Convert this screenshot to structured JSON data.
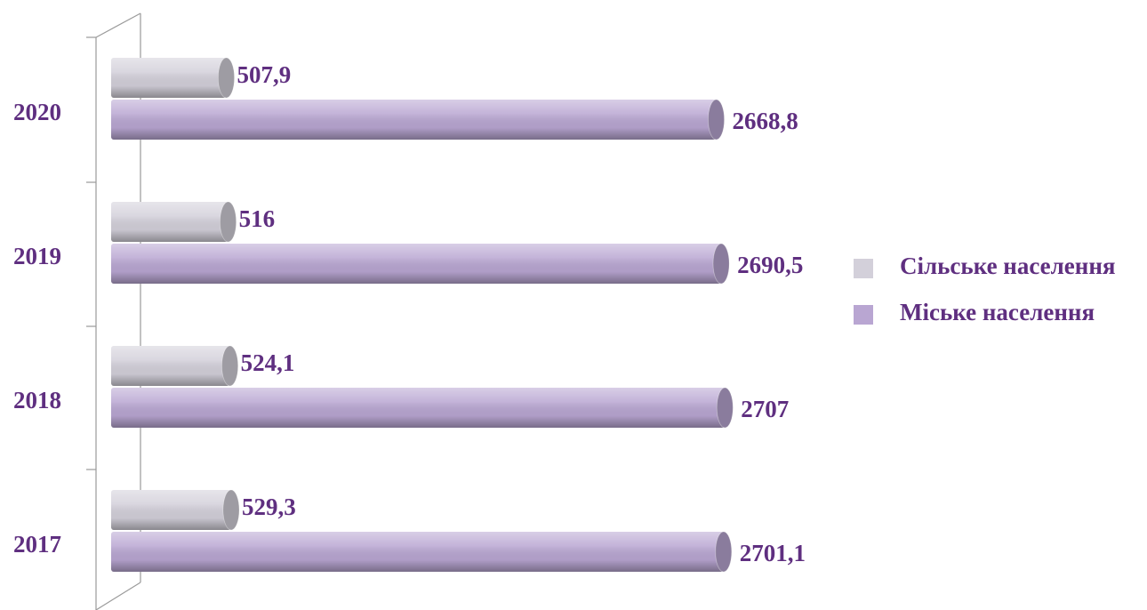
{
  "chart_data": {
    "type": "bar",
    "orientation": "horizontal",
    "categories": [
      "2020",
      "2019",
      "2018",
      "2017"
    ],
    "series": [
      {
        "name": "Сільське населення",
        "color": "#d3d0da",
        "values": [
          507.9,
          516,
          524.1,
          529.3
        ],
        "value_labels": [
          "507,9",
          "516",
          "524,1",
          "529,3"
        ]
      },
      {
        "name": "Міське населення",
        "color": "#b9a6d2",
        "values": [
          2668.8,
          2690.5,
          2707,
          2701.1
        ],
        "value_labels": [
          "2668,8",
          "2690,5",
          "2707",
          "2701,1"
        ]
      }
    ],
    "xlim": [
      0,
      2800
    ],
    "legend": "right"
  }
}
